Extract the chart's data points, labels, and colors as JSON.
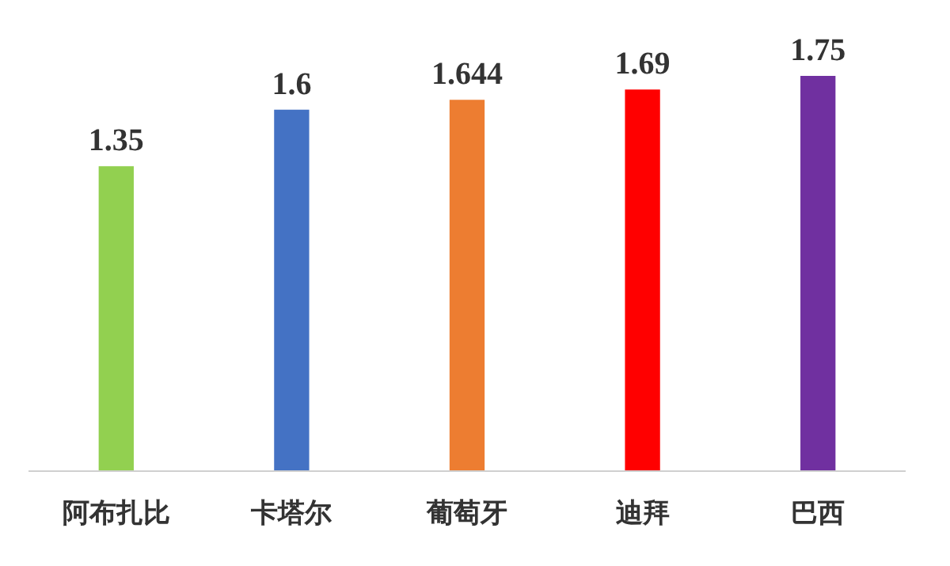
{
  "chart_data": {
    "type": "bar",
    "categories": [
      "阿布扎比",
      "卡塔尔",
      "葡萄牙",
      "迪拜",
      "巴西"
    ],
    "values": [
      1.35,
      1.6,
      1.644,
      1.69,
      1.75
    ],
    "colors": [
      "#92d050",
      "#4472c4",
      "#ed7d31",
      "#ff0000",
      "#7030a0"
    ],
    "data_labels": true
  }
}
